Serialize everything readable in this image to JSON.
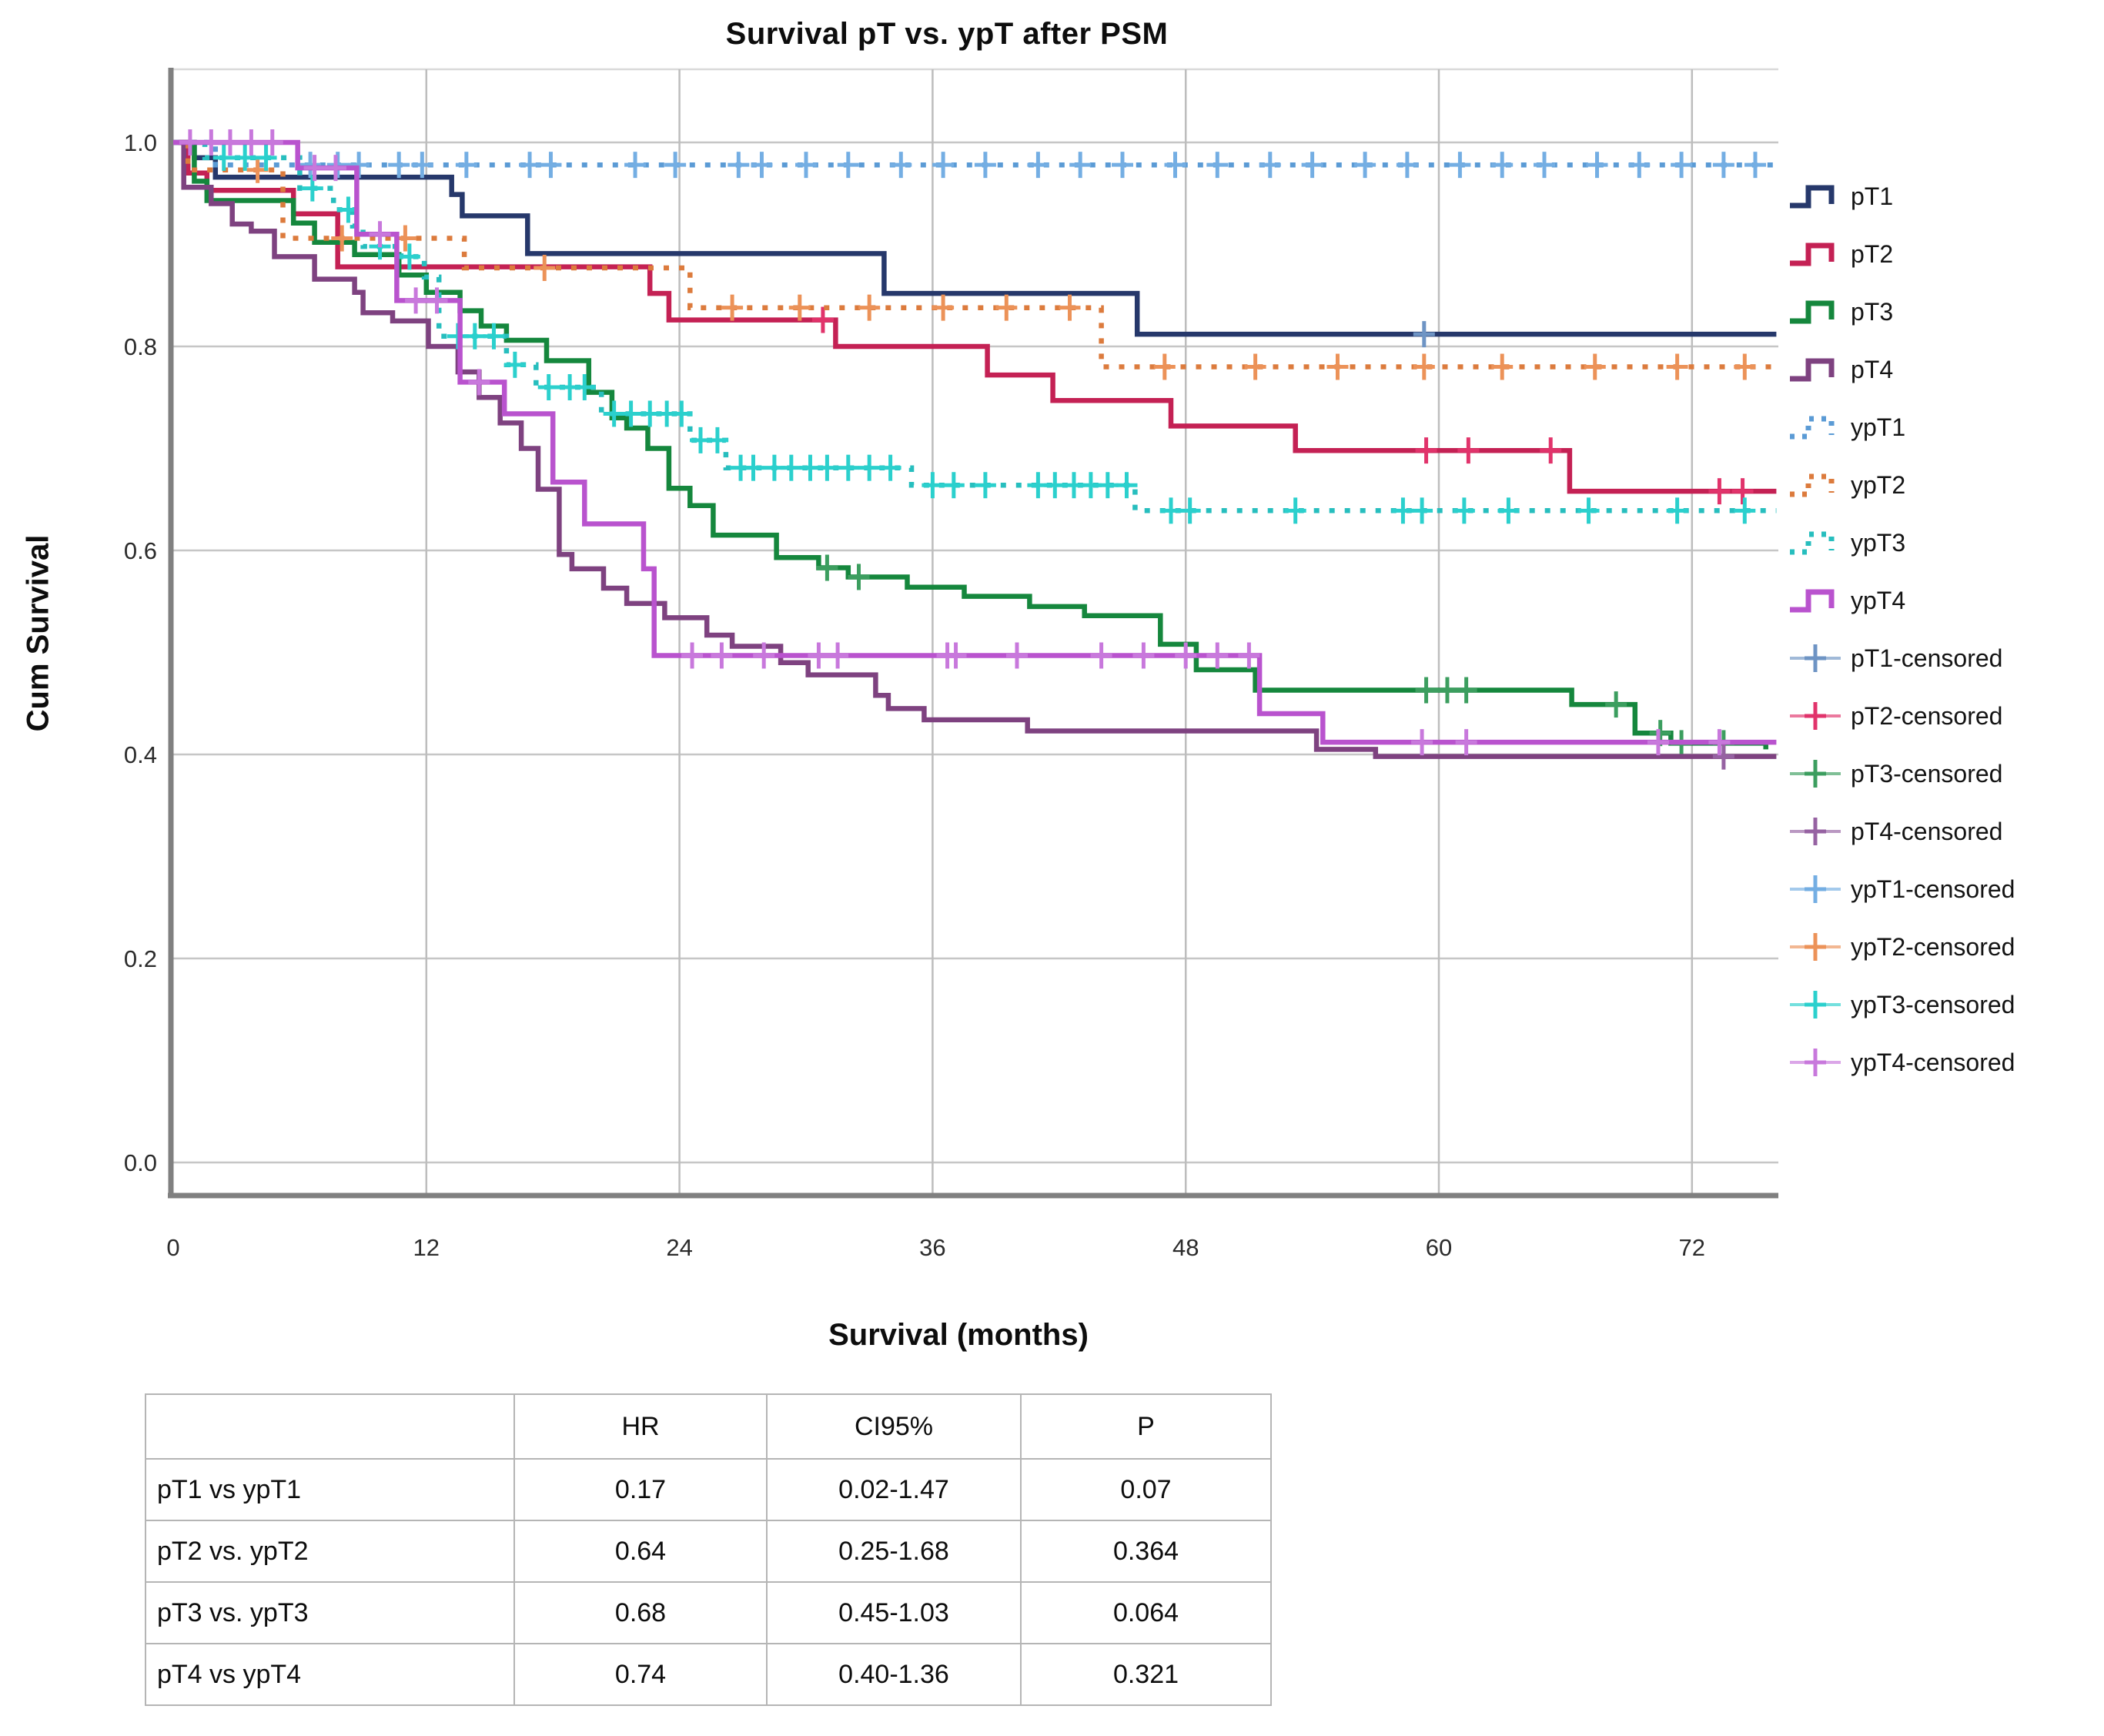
{
  "chart_data": {
    "type": "line",
    "subtype": "kaplan-meier-step",
    "title": "Survival pT vs. ypT after PSM",
    "xlabel": "Survival (months)",
    "ylabel": "Cum Survival",
    "xlim": [
      0,
      76
    ],
    "ylim": [
      0,
      1.05
    ],
    "x_ticks": [
      0,
      12,
      24,
      36,
      48,
      60,
      72
    ],
    "y_ticks": [
      0.0,
      0.2,
      0.4,
      0.6,
      0.8,
      1.0
    ],
    "grid": true,
    "legend_position": "right",
    "series": [
      {
        "name": "pT1",
        "censored_label": "pT1-censored",
        "color": "#26386B",
        "censor_color": "#6E94C4",
        "style": "solid",
        "steps": [
          [
            0,
            1.0
          ],
          [
            1,
            0.985
          ],
          [
            2,
            0.966
          ],
          [
            13.2,
            0.949
          ],
          [
            13.7,
            0.928
          ],
          [
            16.8,
            0.891
          ],
          [
            33.7,
            0.852
          ],
          [
            45.7,
            0.812
          ],
          [
            76,
            0.812
          ]
        ],
        "censored": [
          59.3
        ]
      },
      {
        "name": "pT2",
        "censored_label": "pT2-censored",
        "color": "#C42154",
        "censor_color": "#E1336B",
        "style": "solid",
        "steps": [
          [
            0,
            1.0
          ],
          [
            0.7,
            0.97
          ],
          [
            1.6,
            0.953
          ],
          [
            5.7,
            0.93
          ],
          [
            7.8,
            0.878
          ],
          [
            22.6,
            0.852
          ],
          [
            23.5,
            0.826
          ],
          [
            31.4,
            0.8
          ],
          [
            38.6,
            0.772
          ],
          [
            41.7,
            0.747
          ],
          [
            47.3,
            0.722
          ],
          [
            53.2,
            0.698
          ],
          [
            66.2,
            0.658
          ],
          [
            76,
            0.658
          ]
        ],
        "censored": [
          30.8,
          59.4,
          61.4,
          65.3,
          73.3,
          74.4
        ]
      },
      {
        "name": "pT3",
        "censored_label": "pT3-censored",
        "color": "#15873D",
        "censor_color": "#3C9E5F",
        "style": "solid",
        "steps": [
          [
            0,
            1.0
          ],
          [
            1,
            0.962
          ],
          [
            1.6,
            0.943
          ],
          [
            5.7,
            0.921
          ],
          [
            6.7,
            0.902
          ],
          [
            8.6,
            0.89
          ],
          [
            10.7,
            0.87
          ],
          [
            12,
            0.853
          ],
          [
            13.6,
            0.835
          ],
          [
            14.6,
            0.82
          ],
          [
            15.8,
            0.806
          ],
          [
            17.7,
            0.786
          ],
          [
            19.7,
            0.755
          ],
          [
            20.8,
            0.73
          ],
          [
            21.5,
            0.72
          ],
          [
            22.5,
            0.7
          ],
          [
            23.5,
            0.661
          ],
          [
            24.5,
            0.644
          ],
          [
            25.6,
            0.615
          ],
          [
            28.6,
            0.593
          ],
          [
            30.6,
            0.583
          ],
          [
            32,
            0.574
          ],
          [
            34.8,
            0.564
          ],
          [
            37.5,
            0.555
          ],
          [
            40.6,
            0.545
          ],
          [
            43.2,
            0.536
          ],
          [
            46.8,
            0.508
          ],
          [
            48.5,
            0.483
          ],
          [
            51.3,
            0.463
          ],
          [
            66.3,
            0.449
          ],
          [
            69.3,
            0.421
          ],
          [
            71,
            0.411
          ],
          [
            75.5,
            0.405
          ]
        ],
        "censored": [
          31,
          32.5,
          59.4,
          60.4,
          61.3,
          68.4,
          70.5,
          71.5,
          73.5
        ]
      },
      {
        "name": "pT4",
        "censored_label": "pT4-censored",
        "color": "#7E4280",
        "censor_color": "#9662A2",
        "style": "solid",
        "steps": [
          [
            0,
            1.0
          ],
          [
            0.5,
            0.956
          ],
          [
            1.8,
            0.94
          ],
          [
            2.8,
            0.92
          ],
          [
            3.7,
            0.913
          ],
          [
            4.8,
            0.888
          ],
          [
            6.7,
            0.866
          ],
          [
            8.6,
            0.853
          ],
          [
            9,
            0.833
          ],
          [
            10.4,
            0.825
          ],
          [
            12.1,
            0.8
          ],
          [
            13.5,
            0.775
          ],
          [
            14.5,
            0.75
          ],
          [
            15.5,
            0.725
          ],
          [
            16.5,
            0.7
          ],
          [
            17.3,
            0.66
          ],
          [
            18.3,
            0.596
          ],
          [
            18.9,
            0.582
          ],
          [
            20.4,
            0.563
          ],
          [
            21.5,
            0.548
          ],
          [
            23.3,
            0.534
          ],
          [
            25.3,
            0.517
          ],
          [
            26.5,
            0.506
          ],
          [
            28.8,
            0.49
          ],
          [
            30.1,
            0.478
          ],
          [
            33.3,
            0.458
          ],
          [
            33.9,
            0.445
          ],
          [
            35.6,
            0.434
          ],
          [
            40.5,
            0.423
          ],
          [
            54.2,
            0.405
          ],
          [
            57,
            0.398
          ],
          [
            76,
            0.398
          ]
        ],
        "censored": [
          73.5
        ]
      },
      {
        "name": "ypT1",
        "censored_label": "ypT1-censored",
        "color": "#5B9BD5",
        "censor_color": "#74AEE3",
        "style": "dotted",
        "steps": [
          [
            0,
            1.0
          ],
          [
            2,
            0.978
          ],
          [
            76,
            0.978
          ]
        ],
        "censored": [
          6.5,
          7.8,
          8.8,
          10.7,
          11.8,
          13.9,
          16.9,
          17.9,
          21.9,
          23.8,
          26.8,
          27.9,
          30,
          32,
          34.5,
          36.5,
          38.5,
          41,
          43,
          45,
          47.5,
          49.5,
          52,
          54,
          56.5,
          58.5,
          61,
          63,
          65,
          67.5,
          69.5,
          71.5,
          73.5,
          75
        ]
      },
      {
        "name": "ypT2",
        "censored_label": "ypT2-censored",
        "color": "#DC7B3D",
        "censor_color": "#EC9258",
        "style": "dotted",
        "steps": [
          [
            0,
            1.0
          ],
          [
            0.7,
            0.973
          ],
          [
            5.2,
            0.906
          ],
          [
            13.8,
            0.877
          ],
          [
            24.5,
            0.838
          ],
          [
            44,
            0.78
          ],
          [
            76,
            0.78
          ]
        ],
        "censored": [
          4,
          8,
          11,
          17.6,
          26.5,
          29.7,
          33,
          36.5,
          39.5,
          42.5,
          47,
          51.3,
          55.2,
          59.3,
          63,
          67.4,
          71.3,
          74.5
        ]
      },
      {
        "name": "ypT3",
        "censored_label": "ypT3-censored",
        "color": "#27BEBE",
        "censor_color": "#2BD0CD",
        "style": "dotted",
        "steps": [
          [
            0,
            1.0
          ],
          [
            1.5,
            0.985
          ],
          [
            6,
            0.955
          ],
          [
            7.6,
            0.934
          ],
          [
            8.5,
            0.918
          ],
          [
            9,
            0.898
          ],
          [
            10.8,
            0.888
          ],
          [
            11.9,
            0.868
          ],
          [
            12.6,
            0.81
          ],
          [
            15.8,
            0.782
          ],
          [
            17.2,
            0.76
          ],
          [
            20.3,
            0.734
          ],
          [
            24.5,
            0.708
          ],
          [
            26.2,
            0.681
          ],
          [
            35,
            0.664
          ],
          [
            45.6,
            0.639
          ],
          [
            76,
            0.639
          ]
        ],
        "censored": [
          2.4,
          3.4,
          4.4,
          6.6,
          8.3,
          9.8,
          11.2,
          13.5,
          14.3,
          15.2,
          16.2,
          17.8,
          18.8,
          19.5,
          20.9,
          21.7,
          22.6,
          23.4,
          24.1,
          25,
          25.8,
          26.9,
          27.5,
          28.5,
          29.3,
          30.2,
          31,
          32,
          33,
          34,
          36,
          37,
          38.5,
          41,
          41.8,
          42.7,
          43.5,
          44.3,
          45.2,
          47.3,
          48.2,
          53.2,
          58.3,
          59.2,
          61.2,
          63.3,
          67.1,
          71.3,
          74.5
        ]
      },
      {
        "name": "ypT4",
        "censored_label": "ypT4-censored",
        "color": "#B953CE",
        "censor_color": "#C878DC",
        "style": "solid",
        "steps": [
          [
            0,
            1.0
          ],
          [
            5.9,
            0.975
          ],
          [
            8.7,
            0.91
          ],
          [
            10.6,
            0.845
          ],
          [
            13.6,
            0.765
          ],
          [
            15.7,
            0.734
          ],
          [
            18,
            0.667
          ],
          [
            19.5,
            0.626
          ],
          [
            22.3,
            0.582
          ],
          [
            22.8,
            0.497
          ],
          [
            51.5,
            0.44
          ],
          [
            54.5,
            0.412
          ],
          [
            76,
            0.412
          ]
        ],
        "censored": [
          0.8,
          1.8,
          2.7,
          3.7,
          4.7,
          6.7,
          7.7,
          9.8,
          11.5,
          12.5,
          14.5,
          24.6,
          26,
          28,
          30.6,
          31.5,
          36.7,
          37.1,
          40,
          44,
          46,
          48,
          49.5,
          51,
          59.2,
          61.3,
          70.4,
          73.3
        ]
      }
    ]
  },
  "table": {
    "headers": [
      "",
      "HR",
      "CI95%",
      "P"
    ],
    "rows": [
      {
        "label": "pT1 vs ypT1",
        "hr": "0.17",
        "ci": "0.02-1.47",
        "p": "0.07"
      },
      {
        "label": "pT2 vs. ypT2",
        "hr": "0.64",
        "ci": "0.25-1.68",
        "p": "0.364"
      },
      {
        "label": "pT3 vs. ypT3",
        "hr": "0.68",
        "ci": "0.45-1.03",
        "p": "0.064"
      },
      {
        "label": "pT4 vs ypT4",
        "hr": "0.74",
        "ci": "0.40-1.36",
        "p": "0.321"
      }
    ]
  }
}
